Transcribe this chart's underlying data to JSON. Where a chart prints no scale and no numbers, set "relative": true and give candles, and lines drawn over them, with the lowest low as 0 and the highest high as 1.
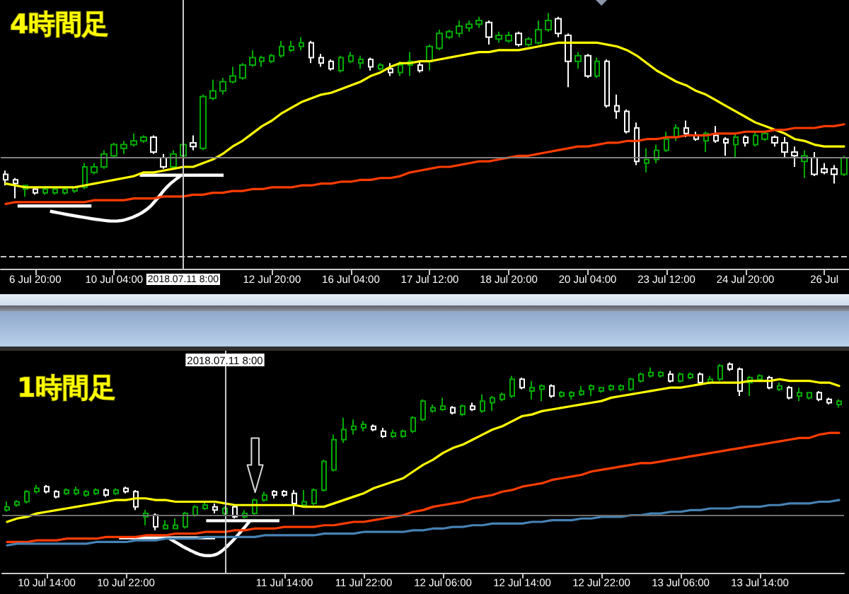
{
  "chart_data": [
    {
      "type": "candlestick",
      "title": "4時間足",
      "relative": true,
      "marker": "none",
      "categories": [
        null,
        null,
        null,
        "6 Jul 20:00",
        null,
        null,
        null,
        null,
        null,
        null,
        null,
        "10 Jul 04:00",
        null,
        null,
        null,
        null,
        null,
        null,
        "2018.07.11 8:00",
        null,
        null,
        null,
        null,
        null,
        null,
        null,
        null,
        "12 Jul 20:00",
        null,
        null,
        null,
        null,
        null,
        null,
        null,
        "16 Jul 04:00",
        null,
        null,
        null,
        null,
        null,
        null,
        null,
        "17 Jul 12:00",
        null,
        null,
        null,
        null,
        null,
        null,
        null,
        "18 Jul 20:00",
        null,
        null,
        null,
        null,
        null,
        null,
        null,
        "20 Jul 04:00",
        null,
        null,
        null,
        null,
        null,
        null,
        null,
        "23 Jul 12:00",
        null,
        null,
        null,
        null,
        null,
        null,
        null,
        "24 Jul 20:00",
        null,
        null,
        null,
        null,
        null,
        null,
        null,
        "26 Jul",
        null,
        null
      ],
      "ohlc": [
        [
          0.13,
          0.15,
          0.07,
          0.1
        ],
        [
          0.1,
          0.11,
          0.0,
          0.08
        ],
        [
          0.05,
          0.07,
          0.01,
          0.07
        ],
        [
          0.05,
          0.06,
          0.02,
          0.03
        ],
        [
          0.03,
          0.06,
          0.02,
          0.05
        ],
        [
          0.03,
          0.06,
          0.02,
          0.05
        ],
        [
          0.03,
          0.06,
          0.02,
          0.05
        ],
        [
          0.04,
          0.06,
          0.03,
          0.06
        ],
        [
          0.06,
          0.19,
          0.05,
          0.17
        ],
        [
          0.14,
          0.19,
          0.13,
          0.17
        ],
        [
          0.17,
          0.26,
          0.16,
          0.24
        ],
        [
          0.23,
          0.3,
          0.22,
          0.29
        ],
        [
          0.27,
          0.31,
          0.24,
          0.29
        ],
        [
          0.29,
          0.35,
          0.28,
          0.31
        ],
        [
          0.31,
          0.34,
          0.3,
          0.33
        ],
        [
          0.33,
          0.34,
          0.24,
          0.25
        ],
        [
          0.22,
          0.24,
          0.16,
          0.17
        ],
        [
          0.17,
          0.26,
          0.16,
          0.24
        ],
        [
          0.23,
          0.3,
          0.22,
          0.29
        ],
        [
          0.3,
          0.34,
          0.26,
          0.28
        ],
        [
          0.27,
          0.56,
          0.26,
          0.55
        ],
        [
          0.54,
          0.64,
          0.53,
          0.58
        ],
        [
          0.58,
          0.65,
          0.56,
          0.63
        ],
        [
          0.63,
          0.71,
          0.62,
          0.66
        ],
        [
          0.65,
          0.73,
          0.64,
          0.72
        ],
        [
          0.72,
          0.8,
          0.71,
          0.76
        ],
        [
          0.74,
          0.77,
          0.71,
          0.76
        ],
        [
          0.74,
          0.78,
          0.73,
          0.77
        ],
        [
          0.77,
          0.85,
          0.76,
          0.82
        ],
        [
          0.8,
          0.85,
          0.79,
          0.82
        ],
        [
          0.82,
          0.87,
          0.8,
          0.84
        ],
        [
          0.84,
          0.85,
          0.73,
          0.76
        ],
        [
          0.76,
          0.78,
          0.71,
          0.73
        ],
        [
          0.74,
          0.75,
          0.69,
          0.7
        ],
        [
          0.69,
          0.77,
          0.68,
          0.76
        ],
        [
          0.74,
          0.79,
          0.73,
          0.77
        ],
        [
          0.73,
          0.77,
          0.7,
          0.75
        ],
        [
          0.75,
          0.76,
          0.69,
          0.71
        ],
        [
          0.7,
          0.73,
          0.69,
          0.72
        ],
        [
          0.7,
          0.73,
          0.66,
          0.68
        ],
        [
          0.68,
          0.74,
          0.66,
          0.72
        ],
        [
          0.72,
          0.79,
          0.66,
          0.74
        ],
        [
          0.72,
          0.74,
          0.68,
          0.69
        ],
        [
          0.74,
          0.83,
          0.69,
          0.82
        ],
        [
          0.81,
          0.91,
          0.8,
          0.89
        ],
        [
          0.87,
          0.91,
          0.86,
          0.9
        ],
        [
          0.89,
          0.96,
          0.87,
          0.93
        ],
        [
          0.92,
          0.96,
          0.9,
          0.94
        ],
        [
          0.94,
          0.98,
          0.92,
          0.96
        ],
        [
          0.95,
          0.96,
          0.83,
          0.87
        ],
        [
          0.86,
          0.9,
          0.84,
          0.88
        ],
        [
          0.85,
          0.9,
          0.84,
          0.88
        ],
        [
          0.89,
          0.9,
          0.82,
          0.83
        ],
        [
          0.83,
          0.87,
          0.82,
          0.86
        ],
        [
          0.84,
          0.96,
          0.83,
          0.91
        ],
        [
          0.91,
          1.0,
          0.9,
          0.96
        ],
        [
          0.97,
          0.98,
          0.87,
          0.89
        ],
        [
          0.88,
          0.89,
          0.6,
          0.74
        ],
        [
          0.74,
          0.79,
          0.7,
          0.77
        ],
        [
          0.77,
          0.78,
          0.65,
          0.66
        ],
        [
          0.66,
          0.76,
          0.65,
          0.74
        ],
        [
          0.74,
          0.75,
          0.49,
          0.5
        ],
        [
          0.5,
          0.56,
          0.43,
          0.47
        ],
        [
          0.47,
          0.48,
          0.35,
          0.36
        ],
        [
          0.38,
          0.41,
          0.18,
          0.2
        ],
        [
          0.19,
          0.27,
          0.14,
          0.21
        ],
        [
          0.21,
          0.29,
          0.19,
          0.26
        ],
        [
          0.26,
          0.36,
          0.25,
          0.32
        ],
        [
          0.33,
          0.4,
          0.31,
          0.38
        ],
        [
          0.38,
          0.42,
          0.33,
          0.35
        ],
        [
          0.34,
          0.36,
          0.31,
          0.32
        ],
        [
          0.31,
          0.36,
          0.25,
          0.35
        ],
        [
          0.34,
          0.39,
          0.3,
          0.31
        ],
        [
          0.32,
          0.33,
          0.23,
          0.3
        ],
        [
          0.29,
          0.35,
          0.22,
          0.33
        ],
        [
          0.33,
          0.34,
          0.28,
          0.3
        ],
        [
          0.29,
          0.36,
          0.28,
          0.34
        ],
        [
          0.32,
          0.36,
          0.31,
          0.35
        ],
        [
          0.33,
          0.34,
          0.28,
          0.3
        ],
        [
          0.3,
          0.33,
          0.22,
          0.25
        ],
        [
          0.25,
          0.28,
          0.17,
          0.23
        ],
        [
          0.2,
          0.26,
          0.11,
          0.23
        ],
        [
          0.22,
          0.25,
          0.12,
          0.13
        ],
        [
          0.16,
          0.19,
          0.13,
          0.14
        ],
        [
          0.16,
          0.18,
          0.08,
          0.13
        ],
        [
          0.13,
          0.23,
          0.12,
          0.22
        ]
      ],
      "colors": [
        "#ffffff",
        "#ffffff",
        "#00aa00",
        "#ffffff",
        "#00aa00",
        "#00aa00",
        "#00aa00",
        "#00aa00",
        "#00aa00",
        "#00aa00",
        "#00aa00",
        "#00aa00",
        "#00aa00",
        "#00aa00",
        "#00aa00",
        "#ffffff",
        "#ffffff",
        "#00aa00",
        "#00aa00",
        "#ffffff",
        "#00aa00",
        "#00aa00",
        "#00aa00",
        "#00aa00",
        "#00aa00",
        "#00aa00",
        "#00aa00",
        "#00aa00",
        "#00aa00",
        "#00aa00",
        "#00aa00",
        "#ffffff",
        "#ffffff",
        "#ffffff",
        "#00aa00",
        "#00aa00",
        "#00aa00",
        "#ffffff",
        "#00aa00",
        "#ffffff",
        "#00aa00",
        "#00aa00",
        "#ffffff",
        "#00aa00",
        "#00aa00",
        "#00aa00",
        "#00aa00",
        "#00aa00",
        "#00aa00",
        "#ffffff",
        "#00aa00",
        "#00aa00",
        "#ffffff",
        "#00aa00",
        "#00aa00",
        "#00aa00",
        "#ffffff",
        "#ffffff",
        "#00aa00",
        "#ffffff",
        "#00aa00",
        "#ffffff",
        "#ffffff",
        "#ffffff",
        "#ffffff",
        "#00aa00",
        "#00aa00",
        "#00aa00",
        "#00aa00",
        "#ffffff",
        "#ffffff",
        "#00aa00",
        "#ffffff",
        "#ffffff",
        "#00aa00",
        "#ffffff",
        "#00aa00",
        "#00aa00",
        "#ffffff",
        "#ffffff",
        "#ffffff",
        "#00aa00",
        "#ffffff",
        "#ffffff",
        "#ffffff",
        "#00aa00"
      ],
      "series": [
        {
          "type": "line",
          "color": "#ffff00",
          "values": [
            0.08,
            0.07,
            0.06,
            0.06,
            0.06,
            0.06,
            0.06,
            0.06,
            0.07,
            0.08,
            0.09,
            0.1,
            0.11,
            0.12,
            0.14,
            0.14,
            0.15,
            0.16,
            0.17,
            0.17,
            0.19,
            0.21,
            0.24,
            0.28,
            0.31,
            0.35,
            0.39,
            0.42,
            0.46,
            0.49,
            0.52,
            0.54,
            0.56,
            0.57,
            0.59,
            0.61,
            0.63,
            0.66,
            0.68,
            0.71,
            0.73,
            0.73,
            0.74,
            0.74,
            0.75,
            0.76,
            0.77,
            0.78,
            0.79,
            0.79,
            0.8,
            0.8,
            0.8,
            0.81,
            0.82,
            0.83,
            0.84,
            0.84,
            0.84,
            0.84,
            0.84,
            0.83,
            0.82,
            0.8,
            0.77,
            0.73,
            0.69,
            0.66,
            0.63,
            0.61,
            0.58,
            0.56,
            0.53,
            0.5,
            0.47,
            0.44,
            0.41,
            0.39,
            0.37,
            0.35,
            0.32,
            0.31,
            0.29,
            0.28,
            0.28,
            0.28
          ]
        },
        {
          "type": "line",
          "color": "#ff3c00",
          "values": [
            -0.03,
            -0.02,
            -0.02,
            -0.02,
            -0.02,
            -0.02,
            -0.02,
            -0.02,
            -0.02,
            -0.01,
            -0.01,
            -0.01,
            -0.01,
            0.0,
            0.0,
            0.0,
            0.01,
            0.01,
            0.01,
            0.02,
            0.02,
            0.03,
            0.03,
            0.04,
            0.04,
            0.05,
            0.05,
            0.06,
            0.06,
            0.06,
            0.07,
            0.07,
            0.08,
            0.08,
            0.09,
            0.09,
            0.1,
            0.1,
            0.11,
            0.11,
            0.12,
            0.14,
            0.15,
            0.16,
            0.17,
            0.17,
            0.18,
            0.19,
            0.2,
            0.2,
            0.21,
            0.22,
            0.23,
            0.23,
            0.24,
            0.25,
            0.26,
            0.27,
            0.28,
            0.28,
            0.29,
            0.3,
            0.3,
            0.31,
            0.31,
            0.32,
            0.32,
            0.33,
            0.33,
            0.34,
            0.34,
            0.34,
            0.35,
            0.35,
            0.35,
            0.36,
            0.36,
            0.36,
            0.37,
            0.37,
            0.38,
            0.38,
            0.38,
            0.39,
            0.39,
            0.4
          ]
        }
      ],
      "ref_lines": [
        {
          "axis": "x",
          "value": "2018.07.11 8:00",
          "color": "#c8c8c8"
        },
        {
          "axis": "y",
          "value": 0.22,
          "color": "#808080"
        },
        {
          "axis": "y",
          "value": -0.31,
          "color": "#c8c8c8",
          "line_style": "dashed"
        }
      ]
    },
    {
      "type": "candlestick",
      "title": "1時間足",
      "relative": true,
      "marker": "none",
      "categories": [
        null,
        null,
        null,
        null,
        "10 Jul 14:00",
        null,
        null,
        null,
        null,
        null,
        null,
        null,
        "10 Jul 22:00",
        null,
        null,
        null,
        null,
        null,
        null,
        null,
        null,
        null,
        "2018.07.11 8:00",
        null,
        null,
        null,
        null,
        null,
        "11 Jul 14:00",
        null,
        null,
        null,
        null,
        null,
        null,
        null,
        "11 Jul 22:00",
        null,
        null,
        null,
        null,
        null,
        null,
        null,
        "12 Jul 06:00",
        null,
        null,
        null,
        null,
        null,
        null,
        null,
        "12 Jul 14:00",
        null,
        null,
        null,
        null,
        null,
        null,
        null,
        "12 Jul 22:00",
        null,
        null,
        null,
        null,
        null,
        null,
        null,
        "13 Jul 06:00",
        null,
        null,
        null,
        null,
        null,
        null,
        null,
        "13 Jul 14:00",
        null,
        null,
        null,
        null,
        null,
        null,
        null,
        null
      ],
      "ohlc": [
        [
          0.12,
          0.17,
          0.11,
          0.14
        ],
        [
          0.15,
          0.18,
          0.14,
          0.17
        ],
        [
          0.17,
          0.24,
          0.16,
          0.23
        ],
        [
          0.23,
          0.27,
          0.22,
          0.25
        ],
        [
          0.26,
          0.27,
          0.22,
          0.23
        ],
        [
          0.23,
          0.24,
          0.19,
          0.2
        ],
        [
          0.22,
          0.25,
          0.21,
          0.24
        ],
        [
          0.22,
          0.26,
          0.21,
          0.24
        ],
        [
          0.21,
          0.24,
          0.2,
          0.23
        ],
        [
          0.22,
          0.25,
          0.21,
          0.24
        ],
        [
          0.24,
          0.25,
          0.2,
          0.21
        ],
        [
          0.22,
          0.25,
          0.21,
          0.24
        ],
        [
          0.25,
          0.26,
          0.22,
          0.23
        ],
        [
          0.23,
          0.24,
          0.12,
          0.14
        ],
        [
          0.08,
          0.12,
          0.03,
          0.1
        ],
        [
          0.09,
          0.1,
          0.0,
          0.02
        ],
        [
          0.01,
          0.06,
          0.01,
          0.03
        ],
        [
          0.01,
          0.07,
          0.01,
          0.03
        ],
        [
          0.02,
          0.11,
          0.01,
          0.1
        ],
        [
          0.09,
          0.15,
          0.08,
          0.14
        ],
        [
          0.13,
          0.17,
          0.12,
          0.15
        ],
        [
          0.14,
          0.16,
          0.1,
          0.12
        ],
        [
          0.1,
          0.14,
          0.09,
          0.13
        ],
        [
          0.14,
          0.15,
          0.07,
          0.08
        ],
        [
          0.08,
          0.12,
          0.07,
          0.1
        ],
        [
          0.1,
          0.19,
          0.09,
          0.18
        ],
        [
          0.18,
          0.23,
          0.17,
          0.21
        ],
        [
          0.23,
          0.24,
          0.19,
          0.21
        ],
        [
          0.23,
          0.24,
          0.2,
          0.21
        ],
        [
          0.22,
          0.24,
          0.09,
          0.16
        ],
        [
          0.15,
          0.24,
          0.15,
          0.17
        ],
        [
          0.16,
          0.25,
          0.15,
          0.24
        ],
        [
          0.24,
          0.42,
          0.23,
          0.41
        ],
        [
          0.36,
          0.57,
          0.35,
          0.54
        ],
        [
          0.54,
          0.67,
          0.52,
          0.6
        ],
        [
          0.6,
          0.66,
          0.57,
          0.62
        ],
        [
          0.61,
          0.65,
          0.59,
          0.63
        ],
        [
          0.62,
          0.63,
          0.59,
          0.6
        ],
        [
          0.59,
          0.61,
          0.55,
          0.56
        ],
        [
          0.56,
          0.6,
          0.55,
          0.58
        ],
        [
          0.56,
          0.6,
          0.55,
          0.59
        ],
        [
          0.59,
          0.68,
          0.58,
          0.67
        ],
        [
          0.66,
          0.78,
          0.65,
          0.77
        ],
        [
          0.71,
          0.75,
          0.7,
          0.73
        ],
        [
          0.72,
          0.79,
          0.71,
          0.74
        ],
        [
          0.73,
          0.74,
          0.69,
          0.7
        ],
        [
          0.69,
          0.75,
          0.68,
          0.74
        ],
        [
          0.74,
          0.76,
          0.71,
          0.72
        ],
        [
          0.71,
          0.81,
          0.7,
          0.77
        ],
        [
          0.76,
          0.8,
          0.71,
          0.79
        ],
        [
          0.78,
          0.82,
          0.77,
          0.81
        ],
        [
          0.8,
          0.92,
          0.79,
          0.9
        ],
        [
          0.9,
          0.91,
          0.84,
          0.85
        ],
        [
          0.83,
          0.89,
          0.78,
          0.85
        ],
        [
          0.84,
          0.87,
          0.77,
          0.86
        ],
        [
          0.86,
          0.87,
          0.79,
          0.8
        ],
        [
          0.8,
          0.83,
          0.79,
          0.82
        ],
        [
          0.8,
          0.83,
          0.78,
          0.82
        ],
        [
          0.81,
          0.86,
          0.8,
          0.83
        ],
        [
          0.84,
          0.87,
          0.8,
          0.86
        ],
        [
          0.83,
          0.85,
          0.82,
          0.85
        ],
        [
          0.84,
          0.87,
          0.83,
          0.86
        ],
        [
          0.84,
          0.87,
          0.83,
          0.86
        ],
        [
          0.84,
          0.91,
          0.83,
          0.9
        ],
        [
          0.89,
          0.94,
          0.88,
          0.93
        ],
        [
          0.92,
          0.97,
          0.91,
          0.94
        ],
        [
          0.92,
          0.95,
          0.91,
          0.94
        ],
        [
          0.93,
          0.95,
          0.88,
          0.89
        ],
        [
          0.89,
          0.94,
          0.88,
          0.93
        ],
        [
          0.91,
          0.94,
          0.9,
          0.93
        ],
        [
          0.93,
          0.94,
          0.87,
          0.88
        ],
        [
          0.88,
          0.92,
          0.87,
          0.9
        ],
        [
          0.9,
          0.99,
          0.89,
          0.98
        ],
        [
          0.99,
          1.0,
          0.95,
          0.96
        ],
        [
          0.96,
          0.97,
          0.8,
          0.83
        ],
        [
          0.88,
          0.92,
          0.8,
          0.91
        ],
        [
          0.9,
          0.93,
          0.89,
          0.92
        ],
        [
          0.91,
          0.92,
          0.84,
          0.85
        ],
        [
          0.84,
          0.88,
          0.83,
          0.86
        ],
        [
          0.85,
          0.86,
          0.78,
          0.79
        ],
        [
          0.8,
          0.85,
          0.77,
          0.82
        ],
        [
          0.79,
          0.82,
          0.78,
          0.82
        ],
        [
          0.82,
          0.83,
          0.77,
          0.78
        ],
        [
          0.78,
          0.79,
          0.75,
          0.76
        ],
        [
          0.75,
          0.78,
          0.73,
          0.77
        ]
      ],
      "colors": [
        "#00aa00",
        "#00aa00",
        "#00aa00",
        "#00aa00",
        "#ffffff",
        "#ffffff",
        "#00aa00",
        "#00aa00",
        "#00aa00",
        "#00aa00",
        "#ffffff",
        "#00aa00",
        "#ffffff",
        "#ffffff",
        "#00aa00",
        "#ffffff",
        "#00aa00",
        "#00aa00",
        "#00aa00",
        "#00aa00",
        "#00aa00",
        "#ffffff",
        "#00aa00",
        "#ffffff",
        "#00aa00",
        "#00aa00",
        "#00aa00",
        "#ffffff",
        "#ffffff",
        "#ffffff",
        "#00aa00",
        "#00aa00",
        "#00aa00",
        "#00aa00",
        "#00aa00",
        "#00aa00",
        "#00aa00",
        "#ffffff",
        "#ffffff",
        "#00aa00",
        "#00aa00",
        "#00aa00",
        "#00aa00",
        "#00aa00",
        "#00aa00",
        "#ffffff",
        "#00aa00",
        "#ffffff",
        "#00aa00",
        "#00aa00",
        "#00aa00",
        "#00aa00",
        "#ffffff",
        "#00aa00",
        "#00aa00",
        "#ffffff",
        "#00aa00",
        "#00aa00",
        "#00aa00",
        "#00aa00",
        "#00aa00",
        "#00aa00",
        "#00aa00",
        "#00aa00",
        "#00aa00",
        "#00aa00",
        "#00aa00",
        "#ffffff",
        "#00aa00",
        "#00aa00",
        "#ffffff",
        "#00aa00",
        "#00aa00",
        "#ffffff",
        "#ffffff",
        "#00aa00",
        "#00aa00",
        "#ffffff",
        "#00aa00",
        "#ffffff",
        "#00aa00",
        "#00aa00",
        "#ffffff",
        "#ffffff",
        "#00aa00"
      ],
      "series": [
        {
          "type": "line",
          "color": "#ffff00",
          "values": [
            0.05,
            0.07,
            0.08,
            0.1,
            0.11,
            0.12,
            0.13,
            0.14,
            0.15,
            0.16,
            0.17,
            0.18,
            0.18,
            0.19,
            0.19,
            0.18,
            0.18,
            0.17,
            0.17,
            0.17,
            0.17,
            0.17,
            0.16,
            0.15,
            0.15,
            0.15,
            0.15,
            0.15,
            0.15,
            0.15,
            0.14,
            0.14,
            0.14,
            0.16,
            0.18,
            0.2,
            0.22,
            0.25,
            0.27,
            0.29,
            0.31,
            0.35,
            0.39,
            0.42,
            0.46,
            0.49,
            0.51,
            0.54,
            0.57,
            0.6,
            0.62,
            0.65,
            0.68,
            0.69,
            0.71,
            0.72,
            0.73,
            0.74,
            0.75,
            0.76,
            0.77,
            0.79,
            0.8,
            0.81,
            0.82,
            0.83,
            0.84,
            0.85,
            0.85,
            0.86,
            0.87,
            0.88,
            0.88,
            0.88,
            0.88,
            0.89,
            0.89,
            0.89,
            0.9,
            0.89,
            0.89,
            0.89,
            0.88,
            0.88,
            0.86
          ]
        },
        {
          "type": "line",
          "color": "#ff3c00",
          "values": [
            -0.07,
            -0.07,
            -0.07,
            -0.06,
            -0.06,
            -0.06,
            -0.05,
            -0.05,
            -0.05,
            -0.05,
            -0.04,
            -0.04,
            -0.04,
            -0.04,
            -0.03,
            -0.03,
            -0.03,
            -0.02,
            -0.02,
            -0.02,
            -0.01,
            -0.01,
            -0.01,
            0.0,
            0.0,
            0.01,
            0.01,
            0.01,
            0.02,
            0.02,
            0.02,
            0.02,
            0.03,
            0.03,
            0.04,
            0.05,
            0.05,
            0.06,
            0.07,
            0.08,
            0.09,
            0.11,
            0.12,
            0.14,
            0.15,
            0.16,
            0.17,
            0.19,
            0.2,
            0.21,
            0.23,
            0.24,
            0.26,
            0.27,
            0.28,
            0.3,
            0.31,
            0.32,
            0.33,
            0.35,
            0.36,
            0.37,
            0.38,
            0.39,
            0.4,
            0.4,
            0.41,
            0.42,
            0.43,
            0.44,
            0.45,
            0.46,
            0.47,
            0.48,
            0.49,
            0.5,
            0.51,
            0.52,
            0.53,
            0.54,
            0.55,
            0.55,
            0.57,
            0.58,
            0.58
          ]
        },
        {
          "type": "line",
          "color": "#4682b4",
          "values": [
            -0.09,
            -0.08,
            -0.08,
            -0.08,
            -0.08,
            -0.08,
            -0.08,
            -0.08,
            -0.08,
            -0.07,
            -0.07,
            -0.07,
            -0.07,
            -0.06,
            -0.06,
            -0.06,
            -0.05,
            -0.05,
            -0.05,
            -0.05,
            -0.04,
            -0.04,
            -0.04,
            -0.04,
            -0.04,
            -0.04,
            -0.03,
            -0.03,
            -0.03,
            -0.03,
            -0.03,
            -0.03,
            -0.02,
            -0.02,
            -0.02,
            -0.02,
            -0.01,
            -0.01,
            -0.01,
            -0.01,
            -0.01,
            0.0,
            0.0,
            0.01,
            0.01,
            0.02,
            0.02,
            0.03,
            0.03,
            0.04,
            0.04,
            0.04,
            0.04,
            0.05,
            0.05,
            0.06,
            0.06,
            0.06,
            0.07,
            0.07,
            0.08,
            0.08,
            0.08,
            0.09,
            0.09,
            0.1,
            0.1,
            0.11,
            0.11,
            0.12,
            0.12,
            0.13,
            0.13,
            0.13,
            0.14,
            0.14,
            0.14,
            0.15,
            0.15,
            0.16,
            0.16,
            0.16,
            0.17,
            0.17,
            0.18
          ]
        }
      ],
      "ref_lines": [
        {
          "axis": "x",
          "value": "2018.07.11 8:00",
          "color": "#c8c8c8"
        },
        {
          "axis": "y",
          "value": 0.09,
          "color": "#6e6e6e"
        }
      ]
    }
  ]
}
